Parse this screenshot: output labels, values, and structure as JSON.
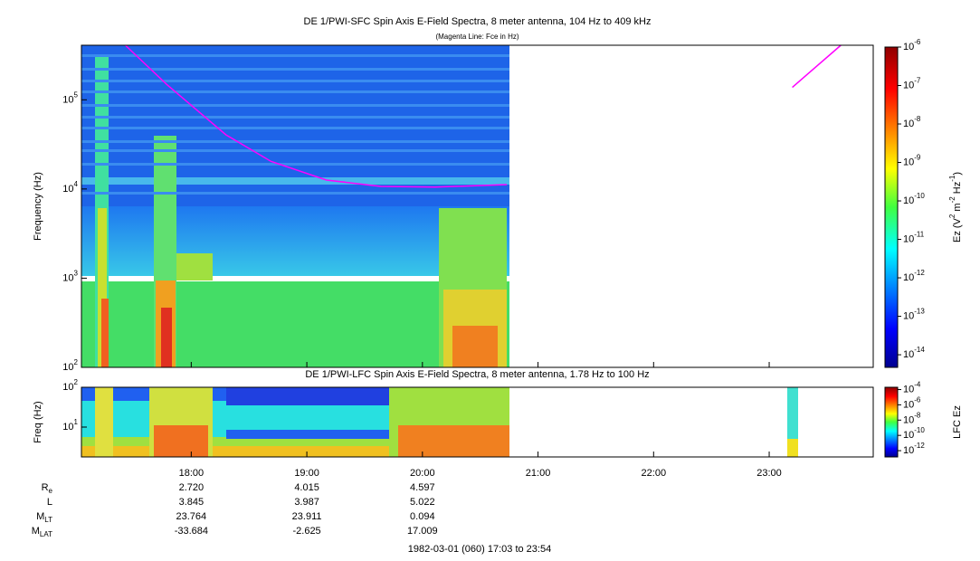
{
  "chart_data": [
    {
      "type": "spectrogram",
      "title": "DE 1/PWI-SFC  Spin Axis E-Field Spectra, 8 meter antenna, 104 Hz to 409 kHz",
      "subtitle": "(Magenta Line: Fce in Hz)",
      "y_label": "Frequency (Hz)",
      "y_log": true,
      "ylim": [
        100,
        409000
      ],
      "yticks": [
        {
          "value": 100,
          "label": "10",
          "exponent": "2"
        },
        {
          "value": 1000,
          "label": "10",
          "exponent": "3"
        },
        {
          "value": 10000,
          "label": "10",
          "exponent": "4"
        },
        {
          "value": 100000,
          "label": "10",
          "exponent": "5"
        }
      ],
      "xlim": [
        17.05,
        23.9
      ],
      "colorbar": {
        "label": [
          {
            "text": "Ez (V"
          },
          {
            "sup": "2"
          },
          {
            "text": " m"
          },
          {
            "sup": "-2"
          },
          {
            "text": " Hz"
          },
          {
            "sup": "-1"
          },
          {
            "text": ")"
          }
        ],
        "log": true,
        "lim": [
          4.7e-15,
          1e-06
        ],
        "ticks": [
          {
            "value": 1e-06,
            "label": "10",
            "exponent": "-6"
          },
          {
            "value": 1e-07,
            "label": "10",
            "exponent": "-7"
          },
          {
            "value": 1e-08,
            "label": "10",
            "exponent": "-8"
          },
          {
            "value": 1e-09,
            "label": "10",
            "exponent": "-9"
          },
          {
            "value": 1e-10,
            "label": "10",
            "exponent": "-10"
          },
          {
            "value": 1e-11,
            "label": "10",
            "exponent": "-11"
          },
          {
            "value": 1e-12,
            "label": "10",
            "exponent": "-12"
          },
          {
            "value": 1e-13,
            "label": "10",
            "exponent": "-13"
          },
          {
            "value": 1e-14,
            "label": "10",
            "exponent": "-14"
          }
        ]
      },
      "series": [
        {
          "color": "#ff00ff",
          "x": [
            17.43,
            17.79,
            18.3,
            18.69,
            19.17,
            19.64,
            20.11,
            20.73,
            null,
            23.2,
            23.62
          ],
          "values": [
            409000,
            148000,
            40500,
            20400,
            12600,
            10700,
            10500,
            11200,
            null,
            138000,
            409000
          ]
        }
      ]
    },
    {
      "type": "spectrogram",
      "title": "DE 1/PWI-LFC  Spin Axis E-Field Spectra, 8 meter antenna, 1.78 Hz to 100 Hz",
      "y_label": "Freq (Hz)",
      "y_log": true,
      "ylim": [
        1.78,
        100
      ],
      "yticks": [
        {
          "value": 10,
          "label": "10",
          "exponent": "1"
        },
        {
          "value": 100,
          "label": "10",
          "exponent": "2"
        }
      ],
      "xlim": [
        17.05,
        23.9
      ],
      "xticks": [
        {
          "value": 18,
          "label": "18:00"
        },
        {
          "value": 19,
          "label": "19:00"
        },
        {
          "value": 20,
          "label": "20:00"
        },
        {
          "value": 21,
          "label": "21:00"
        },
        {
          "value": 22,
          "label": "22:00"
        },
        {
          "value": 23,
          "label": "23:00"
        }
      ],
      "colorbar": {
        "label": [
          {
            "text": "LFC Ez"
          }
        ],
        "log": true,
        "lim": [
          1.5e-13,
          0.0002
        ],
        "ticks": [
          {
            "value": 0.0001,
            "label": "10",
            "exponent": "-4"
          },
          {
            "value": 1e-06,
            "label": "10",
            "exponent": "-6"
          },
          {
            "value": 1e-08,
            "label": "10",
            "exponent": "-8"
          },
          {
            "value": 1e-10,
            "label": "10",
            "exponent": "-10"
          },
          {
            "value": 1e-12,
            "label": "10",
            "exponent": "-12"
          }
        ]
      }
    }
  ],
  "ephemeris": {
    "rows": [
      {
        "label": "R",
        "sub": "e",
        "values": [
          "2.720",
          "4.015",
          "4.597"
        ]
      },
      {
        "label": "L",
        "values": [
          "3.845",
          "3.987",
          "5.022"
        ]
      },
      {
        "label": "M",
        "sub": "LT",
        "values": [
          "23.764",
          "23.911",
          "0.094"
        ]
      },
      {
        "label": "M",
        "sub": "LAT",
        "values": [
          "-33.684",
          "-2.625",
          "17.009"
        ]
      }
    ]
  },
  "footer": "1982-03-01 (060) 17:03 to 23:54"
}
